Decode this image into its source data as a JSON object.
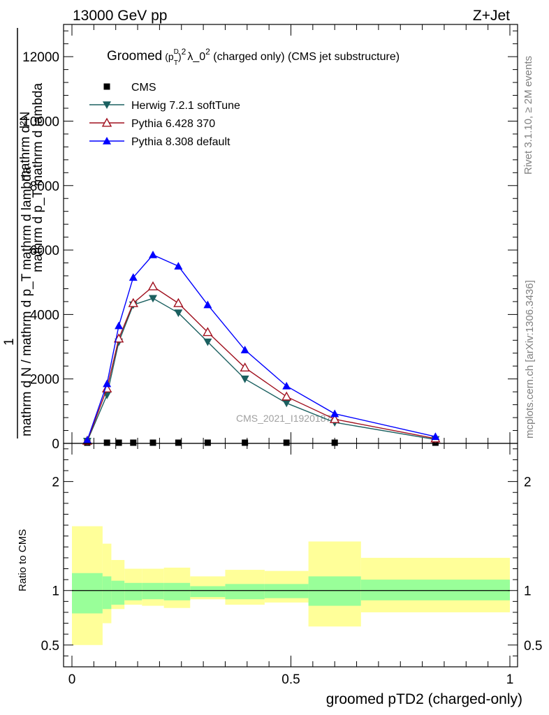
{
  "header": {
    "left": "13000 GeV pp",
    "right": "Z+Jet"
  },
  "plot_title": {
    "pre": "Groomed",
    "p": "(p",
    "sup_d": "D",
    "sub_t": "T",
    "close": ")",
    "sup_2": "2",
    "lambda": "λ_0",
    "sup_2b": "2",
    "post": " (charged only) (CMS jet substructure)"
  },
  "side_text": {
    "rivet": "Rivet 3.1.10, ≥ 2M events",
    "mcplots": "mcplots.cern.ch [arXiv:1306.3436]"
  },
  "watermark": "CMS_2021_I1920187",
  "ylabel_main": {
    "top": "mathrm d²N",
    "bottom": "mathrm d p_T mathrm d lambda",
    "one": "1",
    "denominator": "mathrm d N / mathrm d p_T mathrm d lambda"
  },
  "ylabel_ratio": "Ratio to CMS",
  "xlabel": "groomed pTD2 (charged-only)",
  "colors": {
    "cms": "#000000",
    "herwig": "#1b6060",
    "pythia6": "#a0101e",
    "pythia8": "#0000ff",
    "band_inner": "#99ff99",
    "band_outer": "#ffff99"
  },
  "chart_data": [
    {
      "type": "line",
      "xlim": [
        0,
        1
      ],
      "ylim": [
        0,
        13000
      ],
      "yticks": [
        0,
        2000,
        4000,
        6000,
        8000,
        10000,
        12000
      ],
      "ytick_labels": [
        "0",
        "2000",
        "4000",
        "6000",
        "8000",
        "10000",
        "12000"
      ],
      "legend_position": "top-left",
      "series": [
        {
          "name": "CMS",
          "marker": "square",
          "x": [
            0.035,
            0.08,
            0.107,
            0.14,
            0.185,
            0.243,
            0.31,
            0.395,
            0.49,
            0.6,
            0.83
          ],
          "y": [
            5,
            5,
            5,
            5,
            5,
            5,
            5,
            5,
            5,
            5,
            5
          ]
        },
        {
          "name": "Herwig 7.2.1 softTune",
          "marker": "triangle-down",
          "x": [
            0.035,
            0.08,
            0.107,
            0.14,
            0.185,
            0.243,
            0.31,
            0.395,
            0.49,
            0.6,
            0.83
          ],
          "y": [
            70,
            1500,
            3150,
            4300,
            4500,
            4050,
            3150,
            2000,
            1250,
            650,
            120
          ]
        },
        {
          "name": "Pythia 6.428 370",
          "marker": "triangle-up-open",
          "x": [
            0.035,
            0.08,
            0.107,
            0.14,
            0.185,
            0.243,
            0.31,
            0.395,
            0.49,
            0.6,
            0.83
          ],
          "y": [
            80,
            1700,
            3250,
            4350,
            4870,
            4350,
            3450,
            2350,
            1450,
            750,
            150
          ]
        },
        {
          "name": "Pythia 8.308 default",
          "marker": "triangle-up",
          "x": [
            0.035,
            0.08,
            0.107,
            0.14,
            0.185,
            0.243,
            0.31,
            0.395,
            0.49,
            0.6,
            0.83
          ],
          "y": [
            100,
            1850,
            3650,
            5150,
            5850,
            5500,
            4300,
            2900,
            1780,
            920,
            210
          ]
        }
      ]
    },
    {
      "type": "area",
      "xlim": [
        0,
        1
      ],
      "ylim": [
        0.3,
        2.35
      ],
      "yticks": [
        0.5,
        1,
        2
      ],
      "ytick_labels": [
        "0.5",
        "1",
        "2"
      ],
      "xticks": [
        0,
        0.5,
        1
      ],
      "xtick_labels": [
        "0",
        "0.5",
        "1"
      ],
      "reference_line": 1,
      "bins": [
        0,
        0.07,
        0.09,
        0.12,
        0.16,
        0.21,
        0.27,
        0.35,
        0.44,
        0.54,
        0.66,
        1.0
      ],
      "inner_band": {
        "lo": [
          0.79,
          0.83,
          0.87,
          0.91,
          0.92,
          0.91,
          0.94,
          0.92,
          0.93,
          0.86,
          0.91
        ],
        "hi": [
          1.16,
          1.13,
          1.09,
          1.07,
          1.07,
          1.07,
          1.04,
          1.06,
          1.06,
          1.13,
          1.1
        ]
      },
      "outer_band": {
        "lo": [
          0.5,
          0.7,
          0.83,
          0.87,
          0.86,
          0.84,
          0.92,
          0.87,
          0.89,
          0.67,
          0.8
        ],
        "hi": [
          1.59,
          1.43,
          1.28,
          1.2,
          1.2,
          1.21,
          1.13,
          1.19,
          1.18,
          1.45,
          1.3
        ]
      }
    }
  ]
}
